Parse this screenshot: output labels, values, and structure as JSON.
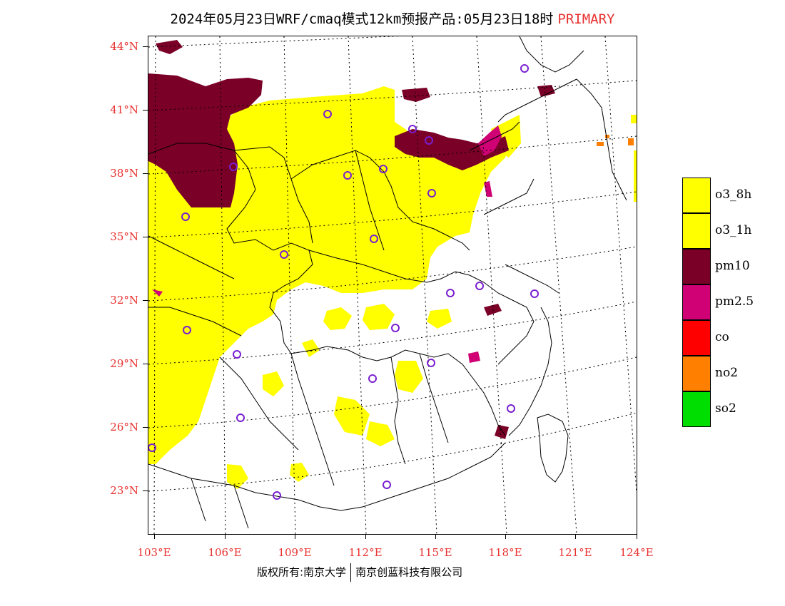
{
  "title": {
    "main": "2024年05月23日WRF/cmaq模式12km预报产品:05月23日18时",
    "tag": "PRIMARY"
  },
  "axes": {
    "lat_labels": [
      "44°N",
      "41°N",
      "38°N",
      "35°N",
      "32°N",
      "29°N",
      "26°N",
      "23°N"
    ],
    "lon_labels": [
      "103°E",
      "106°E",
      "109°E",
      "112°E",
      "115°E",
      "118°E",
      "121°E",
      "124°E"
    ]
  },
  "legend": [
    {
      "label": "o3_8h",
      "color": "#ffff00"
    },
    {
      "label": "o3_1h",
      "color": "#ffff00"
    },
    {
      "label": "pm10",
      "color": "#7a0028"
    },
    {
      "label": "pm2.5",
      "color": "#d00075"
    },
    {
      "label": "co",
      "color": "#ff0000"
    },
    {
      "label": "no2",
      "color": "#ff8000"
    },
    {
      "label": "so2",
      "color": "#00dd00"
    }
  ],
  "footer": {
    "left": "版权所有:南京大学",
    "right": "南京创蓝科技有限公司"
  }
}
